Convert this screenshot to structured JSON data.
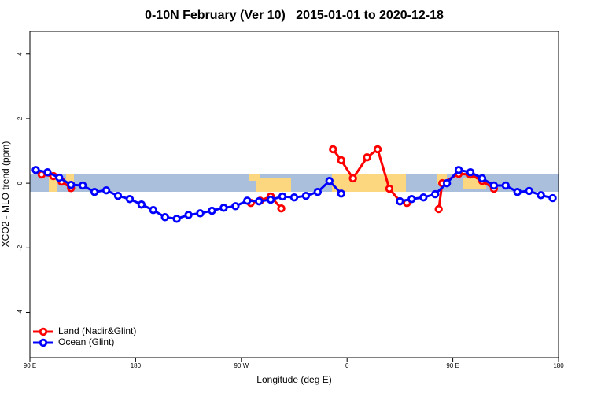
{
  "chart_data": {
    "type": "line",
    "title": "0-10N February (Ver 10)   2015-01-01 to 2020-12-18",
    "x_label": "Longitude (deg E)",
    "y_label": "XCO2 - MLO trend (ppm)",
    "xlim": [
      90,
      540
    ],
    "ylim": [
      -5.4,
      4.7
    ],
    "xticks": [
      {
        "value": 90,
        "label": "90 E"
      },
      180,
      {
        "value": 270,
        "label": "90 W"
      },
      {
        "value": 360,
        "label": "0"
      },
      {
        "value": 450,
        "label": "90 E"
      },
      {
        "value": 540,
        "label": "180"
      }
    ],
    "yticks": [
      -4,
      -2,
      0,
      2,
      4
    ],
    "legend": "bottom-left",
    "series": [
      {
        "name": "Land (Nadir&Glint)",
        "color": "#ff0000",
        "x": [
          100,
          110,
          117,
          125,
          200,
          278,
          286,
          295,
          304,
          326,
          348,
          355,
          365,
          377,
          386,
          396,
          405,
          411,
          424,
          438,
          441,
          455,
          465,
          475,
          485
        ],
        "values": [
          0.27,
          0.22,
          0.05,
          -0.15,
          null,
          -0.61,
          -0.54,
          -0.41,
          -0.78,
          null,
          1.05,
          0.71,
          0.15,
          0.8,
          1.05,
          -0.17,
          -0.56,
          -0.61,
          null,
          -0.8,
          0.0,
          0.29,
          0.27,
          0.07,
          -0.17
        ]
      },
      {
        "name": "Ocean (Glint)",
        "color": "#0000ff",
        "x": [
          95,
          105,
          115,
          125,
          135,
          145,
          155,
          165,
          175,
          185,
          195,
          205,
          215,
          225,
          235,
          245,
          255,
          265,
          275,
          285,
          295,
          305,
          315,
          325,
          335,
          345,
          355,
          365,
          375,
          385,
          395,
          405,
          415,
          425,
          435,
          445,
          455,
          465,
          475,
          485,
          495,
          505,
          515,
          525,
          535
        ],
        "values": [
          0.41,
          0.34,
          0.17,
          -0.05,
          -0.07,
          -0.27,
          -0.22,
          -0.39,
          -0.49,
          -0.66,
          -0.83,
          -1.05,
          -1.1,
          -0.98,
          -0.93,
          -0.85,
          -0.76,
          -0.71,
          -0.54,
          -0.56,
          -0.51,
          -0.41,
          -0.44,
          -0.39,
          -0.27,
          0.07,
          -0.32,
          null,
          null,
          null,
          null,
          -0.56,
          -0.49,
          -0.44,
          -0.34,
          0.0,
          0.41,
          0.34,
          0.15,
          -0.07,
          -0.07,
          -0.27,
          -0.24,
          -0.37,
          -0.46
        ]
      }
    ]
  }
}
